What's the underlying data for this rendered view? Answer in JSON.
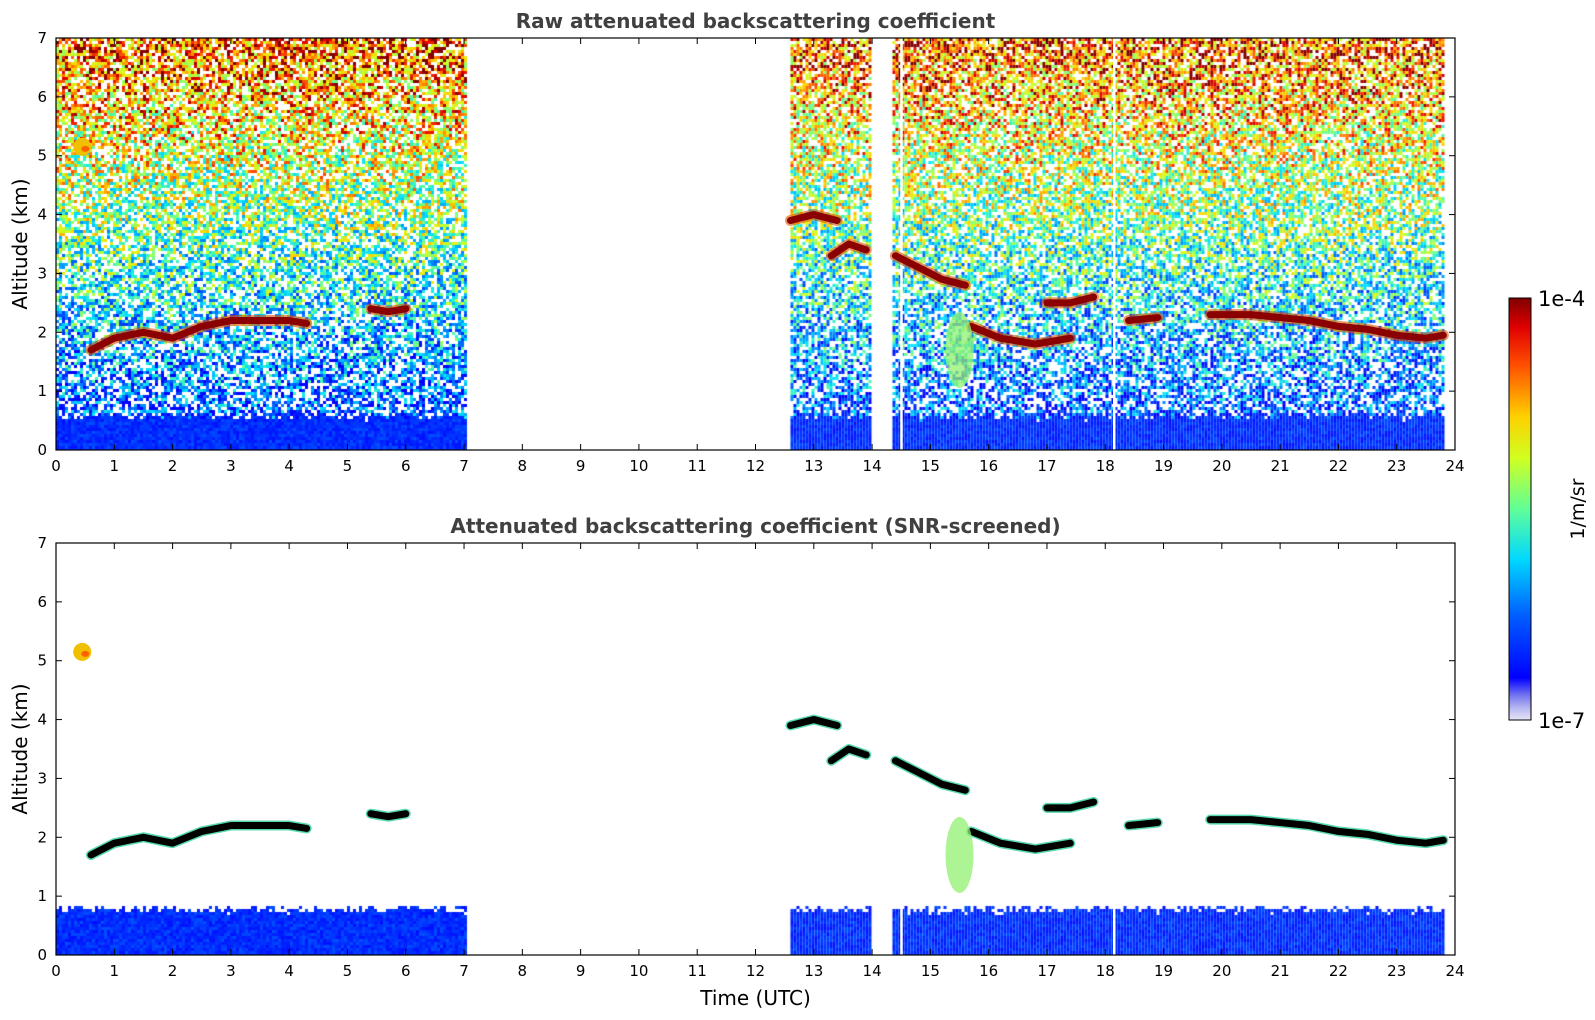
{
  "figure": {
    "colorbar": {
      "label": "1/m/sr",
      "max_label": "1e-4",
      "min_label": "1e-7",
      "range": [
        1e-07,
        0.0001
      ],
      "scale": "log",
      "colormap": "jet"
    }
  },
  "chart_data": [
    {
      "type": "heatmap",
      "title": "Raw attenuated backscattering coefficient",
      "xlabel": "",
      "ylabel": "Altitude (km)",
      "xlim": [
        0,
        24
      ],
      "ylim": [
        0,
        7
      ],
      "xticks": [
        "0",
        "1",
        "2",
        "3",
        "4",
        "5",
        "6",
        "7",
        "8",
        "9",
        "10",
        "11",
        "12",
        "13",
        "14",
        "15",
        "16",
        "17",
        "18",
        "19",
        "20",
        "21",
        "22",
        "23",
        "24"
      ],
      "yticks": [
        "0",
        "1",
        "2",
        "3",
        "4",
        "5",
        "6",
        "7"
      ],
      "data_intervals_utc": [
        [
          0,
          7.0
        ],
        [
          12.6,
          13.95
        ],
        [
          14.35,
          23.8
        ]
      ],
      "missing_profiles_utc": [
        14.5,
        18.15
      ],
      "features": [
        {
          "kind": "surface_layer",
          "top_km": 0.6
        },
        {
          "kind": "aerosol_layer",
          "x": [
            0.6,
            1.0,
            1.5,
            2.0,
            2.5,
            3.0,
            3.5,
            4.0,
            4.3
          ],
          "y": [
            1.7,
            1.9,
            2.0,
            1.9,
            2.1,
            2.2,
            2.2,
            2.2,
            2.15
          ]
        },
        {
          "kind": "aerosol_layer",
          "x": [
            5.4,
            5.7,
            6.0
          ],
          "y": [
            2.4,
            2.35,
            2.4
          ]
        },
        {
          "kind": "aerosol_layer",
          "x": [
            12.6,
            13.0,
            13.4
          ],
          "y": [
            3.9,
            4.0,
            3.9
          ]
        },
        {
          "kind": "aerosol_layer",
          "x": [
            13.3,
            13.6,
            13.9
          ],
          "y": [
            3.3,
            3.5,
            3.4
          ]
        },
        {
          "kind": "aerosol_layer",
          "x": [
            14.4,
            14.8,
            15.2,
            15.6
          ],
          "y": [
            3.3,
            3.1,
            2.9,
            2.8
          ]
        },
        {
          "kind": "aerosol_layer",
          "x": [
            15.7,
            16.2,
            16.8,
            17.4
          ],
          "y": [
            2.1,
            1.9,
            1.8,
            1.9
          ]
        },
        {
          "kind": "aerosol_layer",
          "x": [
            17.0,
            17.4,
            17.8
          ],
          "y": [
            2.5,
            2.5,
            2.6
          ]
        },
        {
          "kind": "aerosol_layer",
          "x": [
            18.4,
            18.9
          ],
          "y": [
            2.2,
            2.25
          ]
        },
        {
          "kind": "aerosol_layer",
          "x": [
            19.8,
            20.5,
            21.0,
            21.5,
            22.0,
            22.5,
            23.0,
            23.5,
            23.8
          ],
          "y": [
            2.3,
            2.3,
            2.25,
            2.2,
            2.1,
            2.05,
            1.95,
            1.9,
            1.95
          ]
        },
        {
          "kind": "plume",
          "x": 0.45,
          "y": 5.15
        },
        {
          "kind": "plume",
          "x": 15.5,
          "y": 1.7
        }
      ]
    },
    {
      "type": "heatmap",
      "title": "Attenuated backscattering coefficient (SNR-screened)",
      "xlabel": "Time (UTC)",
      "ylabel": "Altitude (km)",
      "xlim": [
        0,
        24
      ],
      "ylim": [
        0,
        7
      ],
      "xticks": [
        "0",
        "1",
        "2",
        "3",
        "4",
        "5",
        "6",
        "7",
        "8",
        "9",
        "10",
        "11",
        "12",
        "13",
        "14",
        "15",
        "16",
        "17",
        "18",
        "19",
        "20",
        "21",
        "22",
        "23",
        "24"
      ],
      "yticks": [
        "0",
        "1",
        "2",
        "3",
        "4",
        "5",
        "6",
        "7"
      ],
      "data_intervals_utc": [
        [
          0,
          7.0
        ],
        [
          12.6,
          13.95
        ],
        [
          14.35,
          23.8
        ]
      ],
      "missing_profiles_utc": [
        14.5,
        18.15
      ],
      "features": [
        {
          "kind": "surface_layer",
          "top_km": 0.8
        },
        {
          "kind": "aerosol_layer",
          "x": [
            0.6,
            1.0,
            1.5,
            2.0,
            2.5,
            3.0,
            3.5,
            4.0,
            4.3
          ],
          "y": [
            1.7,
            1.9,
            2.0,
            1.9,
            2.1,
            2.2,
            2.2,
            2.2,
            2.15
          ]
        },
        {
          "kind": "aerosol_layer",
          "x": [
            5.4,
            5.7,
            6.0
          ],
          "y": [
            2.4,
            2.35,
            2.4
          ]
        },
        {
          "kind": "aerosol_layer",
          "x": [
            12.6,
            13.0,
            13.4
          ],
          "y": [
            3.9,
            4.0,
            3.9
          ]
        },
        {
          "kind": "aerosol_layer",
          "x": [
            13.3,
            13.6,
            13.9
          ],
          "y": [
            3.3,
            3.5,
            3.4
          ]
        },
        {
          "kind": "aerosol_layer",
          "x": [
            14.4,
            14.8,
            15.2,
            15.6
          ],
          "y": [
            3.3,
            3.1,
            2.9,
            2.8
          ]
        },
        {
          "kind": "aerosol_layer",
          "x": [
            15.7,
            16.2,
            16.8,
            17.4
          ],
          "y": [
            2.1,
            1.9,
            1.8,
            1.9
          ]
        },
        {
          "kind": "aerosol_layer",
          "x": [
            17.0,
            17.4,
            17.8
          ],
          "y": [
            2.5,
            2.5,
            2.6
          ]
        },
        {
          "kind": "aerosol_layer",
          "x": [
            18.4,
            18.9
          ],
          "y": [
            2.2,
            2.25
          ]
        },
        {
          "kind": "aerosol_layer",
          "x": [
            19.8,
            20.5,
            21.0,
            21.5,
            22.0,
            22.5,
            23.0,
            23.5,
            23.8
          ],
          "y": [
            2.3,
            2.3,
            2.25,
            2.2,
            2.1,
            2.05,
            1.95,
            1.9,
            1.95
          ]
        },
        {
          "kind": "plume",
          "x": 0.45,
          "y": 5.15
        },
        {
          "kind": "plume",
          "x": 15.5,
          "y": 1.7
        }
      ]
    }
  ]
}
